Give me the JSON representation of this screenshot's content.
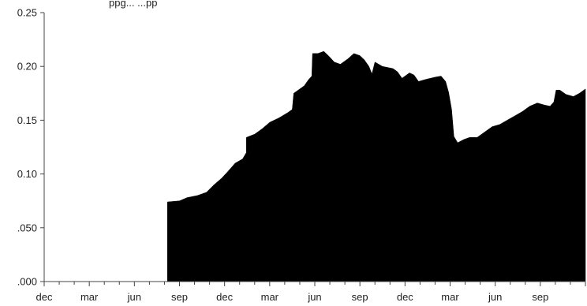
{
  "chart_data": {
    "type": "area",
    "title": "",
    "title_fragment": "ppg...    ...pp",
    "xlabel": "",
    "ylabel": "",
    "ylim": [
      0,
      0.25
    ],
    "yticks": [
      {
        "value": 0,
        "label": ".000"
      },
      {
        "value": 0.05,
        "label": ".050"
      },
      {
        "value": 0.1,
        "label": "0.10"
      },
      {
        "value": 0.15,
        "label": "0.15"
      },
      {
        "value": 0.2,
        "label": "0.20"
      },
      {
        "value": 0.25,
        "label": "0.25"
      }
    ],
    "xticks": [
      {
        "month": 0,
        "label": "dec"
      },
      {
        "month": 3,
        "label": "mar"
      },
      {
        "month": 6,
        "label": "jun"
      },
      {
        "month": 9,
        "label": "sep"
      },
      {
        "month": 12,
        "label": "dec"
      },
      {
        "month": 15,
        "label": "mar"
      },
      {
        "month": 18,
        "label": "jun"
      },
      {
        "month": 21,
        "label": "sep"
      },
      {
        "month": 24,
        "label": "dec"
      },
      {
        "month": 27,
        "label": "mar"
      },
      {
        "month": 30,
        "label": "jun"
      },
      {
        "month": 33,
        "label": "sep"
      }
    ],
    "xlim_months": [
      0,
      36
    ],
    "grid": false,
    "legend": "none",
    "fill_color": "#000000",
    "series": [
      {
        "points": [
          [
            0,
            0
          ],
          [
            8.2,
            0
          ],
          [
            8.2,
            0.074
          ],
          [
            9.0,
            0.075
          ],
          [
            9.5,
            0.078
          ],
          [
            10.2,
            0.08
          ],
          [
            10.8,
            0.083
          ],
          [
            11.3,
            0.09
          ],
          [
            11.8,
            0.096
          ],
          [
            12.2,
            0.102
          ],
          [
            12.7,
            0.11
          ],
          [
            13.2,
            0.114
          ],
          [
            13.45,
            0.12
          ],
          [
            13.45,
            0.134
          ],
          [
            14.0,
            0.137
          ],
          [
            14.5,
            0.142
          ],
          [
            15.0,
            0.148
          ],
          [
            15.6,
            0.152
          ],
          [
            16.2,
            0.157
          ],
          [
            16.5,
            0.16
          ],
          [
            16.6,
            0.175
          ],
          [
            16.9,
            0.178
          ],
          [
            17.3,
            0.182
          ],
          [
            17.6,
            0.188
          ],
          [
            17.8,
            0.191
          ],
          [
            17.85,
            0.212
          ],
          [
            18.2,
            0.212
          ],
          [
            18.6,
            0.214
          ],
          [
            18.9,
            0.21
          ],
          [
            19.3,
            0.204
          ],
          [
            19.7,
            0.202
          ],
          [
            20.2,
            0.207
          ],
          [
            20.6,
            0.212
          ],
          [
            21.0,
            0.21
          ],
          [
            21.3,
            0.206
          ],
          [
            21.6,
            0.2
          ],
          [
            21.8,
            0.193
          ],
          [
            22.0,
            0.204
          ],
          [
            22.5,
            0.2
          ],
          [
            23.2,
            0.198
          ],
          [
            23.5,
            0.195
          ],
          [
            23.8,
            0.189
          ],
          [
            24.3,
            0.194
          ],
          [
            24.6,
            0.192
          ],
          [
            24.9,
            0.186
          ],
          [
            25.4,
            0.188
          ],
          [
            26.0,
            0.19
          ],
          [
            26.4,
            0.191
          ],
          [
            26.7,
            0.186
          ],
          [
            26.9,
            0.176
          ],
          [
            27.1,
            0.16
          ],
          [
            27.25,
            0.135
          ],
          [
            27.5,
            0.129
          ],
          [
            27.9,
            0.132
          ],
          [
            28.3,
            0.134
          ],
          [
            28.8,
            0.134
          ],
          [
            29.3,
            0.139
          ],
          [
            29.8,
            0.144
          ],
          [
            30.3,
            0.146
          ],
          [
            30.8,
            0.15
          ],
          [
            31.3,
            0.154
          ],
          [
            31.8,
            0.158
          ],
          [
            32.3,
            0.163
          ],
          [
            32.8,
            0.166
          ],
          [
            33.3,
            0.164
          ],
          [
            33.65,
            0.163
          ],
          [
            33.9,
            0.167
          ],
          [
            34.05,
            0.178
          ],
          [
            34.3,
            0.178
          ],
          [
            34.7,
            0.174
          ],
          [
            35.2,
            0.172
          ],
          [
            35.6,
            0.175
          ],
          [
            36.0,
            0.179
          ],
          [
            36.0,
            0
          ]
        ]
      }
    ]
  }
}
